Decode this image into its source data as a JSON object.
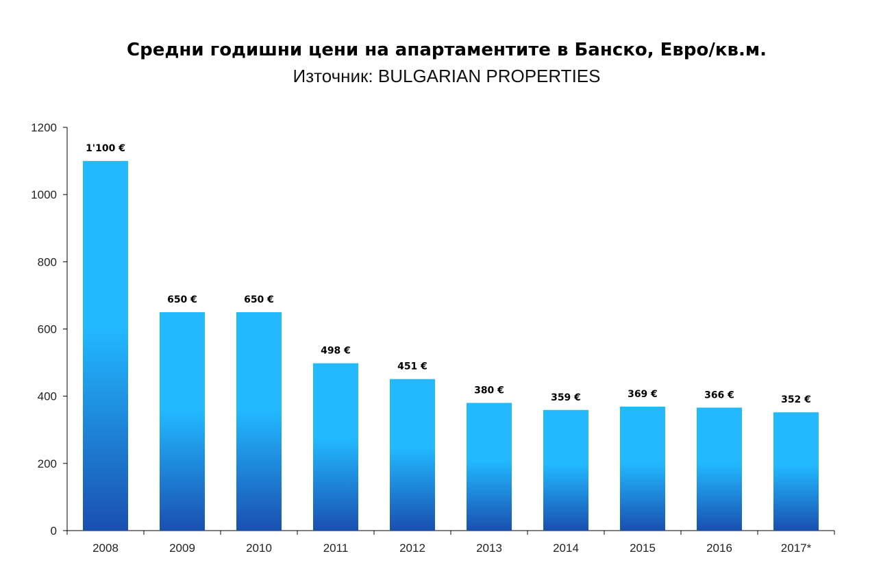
{
  "chart_data": {
    "type": "bar",
    "title": "Средни годишни цени на апартаментите в Банско, Евро/кв.м.",
    "subtitle": "Източник: BULGARIAN PROPERTIES",
    "categories": [
      "2008",
      "2009",
      "2010",
      "2011",
      "2012",
      "2013",
      "2014",
      "2015",
      "2016",
      "2017*"
    ],
    "values": [
      1100,
      650,
      650,
      498,
      451,
      380,
      359,
      369,
      366,
      352
    ],
    "data_labels": [
      "1'100 €",
      "650 €",
      "650 €",
      "498 €",
      "451 €",
      "380 €",
      "359 €",
      "369 €",
      "366 €",
      "352 €"
    ],
    "ylim": [
      0,
      1200
    ],
    "yticks": [
      0,
      200,
      400,
      600,
      800,
      1000,
      1200
    ],
    "grid": false,
    "legend": "none",
    "colors": {
      "bar_top": "#22b9ff",
      "bar_bottom": "#1a50b0",
      "axis": "#000000"
    }
  }
}
